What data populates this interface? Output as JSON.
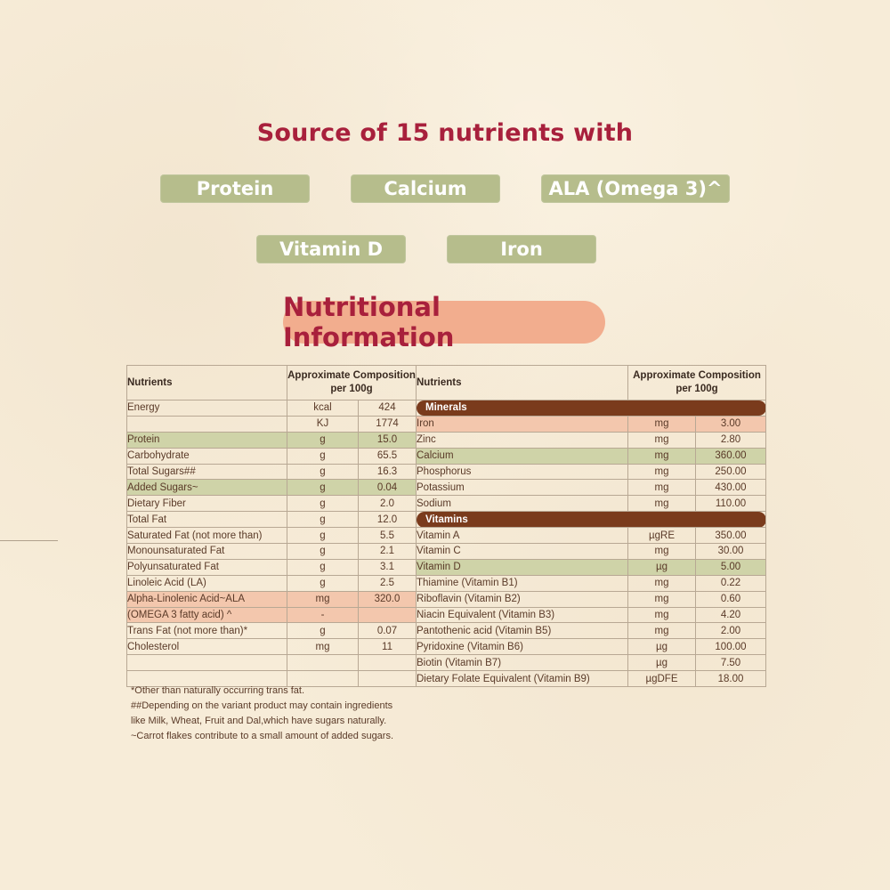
{
  "headline": "Source of 15 nutrients with",
  "highlights": [
    "Protein",
    "Calcium",
    "ALA (Omega 3)^",
    "Vitamin D",
    "Iron"
  ],
  "section_title": "Nutritional Information",
  "left_table": {
    "headers": {
      "nutrients": "Nutrients",
      "composition_1": "Approximate Composition",
      "composition_2": "per 100g"
    },
    "rows": [
      {
        "name": "Energy",
        "unit": "kcal",
        "value": "424"
      },
      {
        "name": "",
        "unit": "KJ",
        "value": "1774"
      },
      {
        "name": "Protein",
        "unit": "g",
        "value": "15.0"
      },
      {
        "name": "Carbohydrate",
        "unit": "g",
        "value": "65.5"
      },
      {
        "name": "Total Sugars##",
        "unit": "g",
        "value": "16.3"
      },
      {
        "name": "Added Sugars~",
        "unit": "g",
        "value": "0.04"
      },
      {
        "name": "Dietary Fiber",
        "unit": "g",
        "value": "2.0"
      },
      {
        "name": "Total Fat",
        "unit": "g",
        "value": "12.0"
      },
      {
        "name": "Saturated Fat (not more than)",
        "unit": "g",
        "value": "5.5"
      },
      {
        "name": "Monounsaturated Fat",
        "unit": "g",
        "value": "2.1"
      },
      {
        "name": "Polyunsaturated Fat",
        "unit": "g",
        "value": "3.1"
      },
      {
        "name": "Linoleic Acid (LA)",
        "unit": "g",
        "value": "2.5"
      },
      {
        "name": "Alpha-Linolenic Acid~ALA",
        "unit": "mg",
        "value": "320.0"
      },
      {
        "name": "(OMEGA 3 fatty acid) ^",
        "unit": "-",
        "value": ""
      },
      {
        "name": "Trans Fat (not more than)*",
        "unit": "g",
        "value": "0.07"
      },
      {
        "name": "Cholesterol",
        "unit": "mg",
        "value": "11"
      },
      {
        "name": "",
        "unit": "",
        "value": ""
      },
      {
        "name": "",
        "unit": "",
        "value": ""
      }
    ]
  },
  "right_table": {
    "headers": {
      "nutrients": "Nutrients",
      "composition_1": "Approximate Composition",
      "composition_2": "per 100g"
    },
    "minerals_label": "Minerals",
    "minerals": [
      {
        "name": "Iron",
        "unit": "mg",
        "value": "3.00"
      },
      {
        "name": "Zinc",
        "unit": "mg",
        "value": "2.80"
      },
      {
        "name": "Calcium",
        "unit": "mg",
        "value": "360.00"
      },
      {
        "name": "Phosphorus",
        "unit": "mg",
        "value": "250.00"
      },
      {
        "name": "Potassium",
        "unit": "mg",
        "value": "430.00"
      },
      {
        "name": "Sodium",
        "unit": "mg",
        "value": "110.00"
      }
    ],
    "vitamins_label": "Vitamins",
    "vitamins": [
      {
        "name": "Vitamin A",
        "unit": "µgRE",
        "value": "350.00"
      },
      {
        "name": "Vitamin C",
        "unit": "mg",
        "value": "30.00"
      },
      {
        "name": "Vitamin D",
        "unit": "µg",
        "value": "5.00"
      },
      {
        "name": "Thiamine (Vitamin B1)",
        "unit": "mg",
        "value": "0.22"
      },
      {
        "name": "Riboflavin (Vitamin B2)",
        "unit": "mg",
        "value": "0.60"
      },
      {
        "name": "Niacin Equivalent (Vitamin B3)",
        "unit": "mg",
        "value": "4.20"
      },
      {
        "name": "Pantothenic acid (Vitamin B5)",
        "unit": "mg",
        "value": "2.00"
      },
      {
        "name": "Pyridoxine (Vitamin B6)",
        "unit": "µg",
        "value": "100.00"
      },
      {
        "name": "Biotin (Vitamin B7)",
        "unit": "µg",
        "value": "7.50"
      },
      {
        "name": "Dietary Folate Equivalent (Vitamin B9)",
        "unit": "µgDFE",
        "value": "18.00"
      }
    ]
  },
  "footnotes": [
    "*Other than naturally occurring trans fat.",
    "##Depending on the variant product may contain ingredients",
    "like Milk, Wheat, Fruit and Dal,which have sugars naturally.",
    "~Carrot flakes contribute to a small amount of added sugars."
  ],
  "colors": {
    "accent": "#a8203c",
    "pill": "#b6bd8c",
    "title_bg": "#f2ad8e",
    "category_bar": "#7a3b1c",
    "row_green": "#cfd3a8",
    "row_peach": "#f3c7ad"
  }
}
